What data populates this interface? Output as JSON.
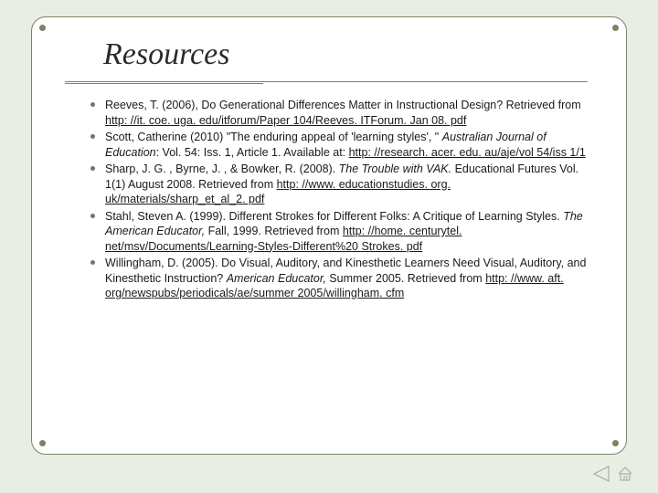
{
  "colors": {
    "page_bg": "#e8eee4",
    "frame_bg": "#ffffff",
    "frame_border": "#7a8468",
    "dot": "#7a8468",
    "bullet": "#6d7a5c",
    "text": "#1a1a1a",
    "nav_stroke": "#a8b098"
  },
  "typography": {
    "title_font": "Georgia / serif italic",
    "title_fontsize": 34,
    "body_font": "Arial",
    "body_fontsize": 12.5,
    "body_lineheight": 1.32
  },
  "layout": {
    "slide_w": 720,
    "slide_h": 540,
    "frame_radius": 16,
    "title_indent": 78
  },
  "title": "Resources",
  "items": [
    {
      "pre": "Reeves, T. (2006), Do Generational Differences Matter in Instructional Design? Retrieved from ",
      "ital": "",
      "mid": "",
      "link": "http: //it. coe. uga. edu/itforum/Paper 104/Reeves. ITForum. Jan 08. pdf",
      "post": ""
    },
    {
      "pre": "Scott, Catherine (2010) \"The enduring appeal of 'learning styles', \" ",
      "ital": "Australian Journal of Education",
      "mid": ": Vol. 54: Iss. 1, Article 1.  Available at: ",
      "link": "http: //research. acer. edu. au/aje/vol 54/iss 1/1",
      "post": ""
    },
    {
      "pre": "Sharp, J. G. , Byrne, J. , & Bowker, R. (2008). ",
      "ital": "The Trouble with VAK.",
      "mid": "  Educational Futures Vol. 1(1) August 2008.  Retrieved from ",
      "link": "http: //www. educationstudies. org. uk/materials/sharp_et_al_2. pdf",
      "post": ""
    },
    {
      "pre": "Stahl, Steven A. (1999). Different Strokes for Different Folks: A Critique of Learning Styles. ",
      "ital": "The American Educator,",
      "mid": " Fall, 1999. Retrieved from ",
      "link": "http: //home. centurytel. net/msv/Documents/Learning-Styles-Different%20 Strokes. pdf",
      "post": ""
    },
    {
      "pre": "Willingham, D. (2005). Do Visual, Auditory, and Kinesthetic Learners Need Visual, Auditory, and Kinesthetic Instruction? ",
      "ital": "American Educator,",
      "mid": " Summer 2005. Retrieved from ",
      "link": "http: //www. aft. org/newspubs/periodicals/ae/summer 2005/willingham. cfm",
      "post": ""
    }
  ],
  "nav": {
    "prev_icon": "triangle-left",
    "home_icon": "house"
  }
}
